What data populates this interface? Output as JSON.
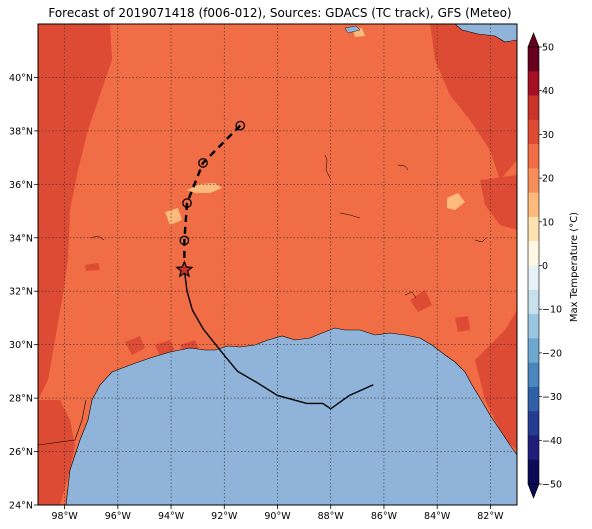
{
  "title": "Forecast of 2019071418 (f006-012), Sources: GDACS (TC track), GFS (Meteo)",
  "map": {
    "lon_range": [
      -99,
      -81
    ],
    "lat_range": [
      24,
      42
    ],
    "lon_ticks": [
      "98°W",
      "96°W",
      "94°W",
      "92°W",
      "90°W",
      "88°W",
      "86°W",
      "84°W",
      "82°W"
    ],
    "lat_ticks": [
      "24°N",
      "26°N",
      "28°N",
      "30°N",
      "32°N",
      "34°N",
      "36°N",
      "38°N",
      "40°N"
    ],
    "gridlines": true,
    "ocean_color": "#8fb3d9"
  },
  "colorbar": {
    "label": "Max Temperature (°C)",
    "ticks": [
      "50",
      "40",
      "30",
      "20",
      "10",
      "0",
      "−10",
      "−20",
      "−30",
      "−40",
      "−50"
    ],
    "colors": [
      "#67001f",
      "#a50f24",
      "#c93429",
      "#de4b34",
      "#f16d45",
      "#f88e59",
      "#fdba7c",
      "#fde2b0",
      "#fff6e3",
      "#e8f2f7",
      "#c6e0ee",
      "#99c6e0",
      "#6ea7d0",
      "#4a87bf",
      "#3061a8",
      "#243c92",
      "#1f1f7b",
      "#0a0a56"
    ]
  },
  "track": {
    "observed": [
      {
        "lon": -86.4,
        "lat": 28.5
      },
      {
        "lon": -87.3,
        "lat": 28.1
      },
      {
        "lon": -88.0,
        "lat": 27.6
      },
      {
        "lon": -88.3,
        "lat": 27.8
      },
      {
        "lon": -88.9,
        "lat": 27.8
      },
      {
        "lon": -90.0,
        "lat": 28.1
      },
      {
        "lon": -90.8,
        "lat": 28.6
      },
      {
        "lon": -91.5,
        "lat": 29.0
      },
      {
        "lon": -92.0,
        "lat": 29.6
      },
      {
        "lon": -92.8,
        "lat": 30.6
      },
      {
        "lon": -93.2,
        "lat": 31.3
      },
      {
        "lon": -93.4,
        "lat": 32.0
      },
      {
        "lon": -93.5,
        "lat": 32.8
      }
    ],
    "forecast": [
      {
        "lon": -93.5,
        "lat": 32.8
      },
      {
        "lon": -93.5,
        "lat": 33.9
      },
      {
        "lon": -93.4,
        "lat": 35.3
      },
      {
        "lon": -92.8,
        "lat": 36.8
      },
      {
        "lon": -91.4,
        "lat": 38.2
      }
    ],
    "current_position": {
      "lon": -93.5,
      "lat": 32.8
    }
  }
}
